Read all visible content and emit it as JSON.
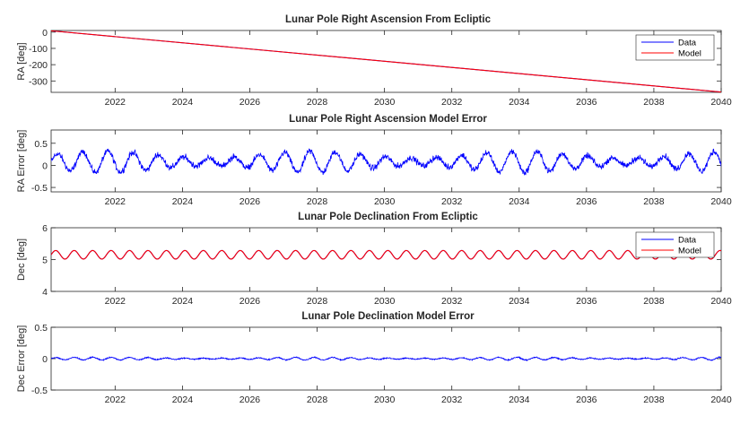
{
  "chart_data": [
    {
      "type": "line",
      "title": "Lunar Pole Right Ascension From Ecliptic",
      "xlabel": "",
      "ylabel": "RA [deg]",
      "xlim": [
        2020.1,
        2040
      ],
      "ylim": [
        -370,
        10
      ],
      "xticks": [
        2022,
        2024,
        2026,
        2028,
        2030,
        2032,
        2034,
        2036,
        2038,
        2040
      ],
      "xtick_labels": [
        "2022",
        "2024",
        "2026",
        "2028",
        "2030",
        "2032",
        "2034",
        "2036",
        "2038",
        "2040"
      ],
      "yticks": [
        0,
        -100,
        -200,
        -300
      ],
      "ytick_labels": [
        "0",
        "-100",
        "-200",
        "-300"
      ],
      "legend": {
        "position": "top-right",
        "entries": [
          "Data",
          "Model"
        ]
      },
      "series": [
        {
          "name": "Data",
          "color": "#0000ff",
          "kind": "linear",
          "x": [
            2020.1,
            2040
          ],
          "y": [
            8,
            -368
          ]
        },
        {
          "name": "Model",
          "color": "#ff0000",
          "kind": "linear",
          "x": [
            2020.1,
            2040
          ],
          "y": [
            8,
            -368
          ]
        }
      ]
    },
    {
      "type": "line",
      "title": "Lunar Pole Right Ascension Model Error",
      "xlabel": "",
      "ylabel": "RA Error [deg]",
      "xlim": [
        2020.1,
        2040
      ],
      "ylim": [
        -0.6,
        0.8
      ],
      "xticks": [
        2022,
        2024,
        2026,
        2028,
        2030,
        2032,
        2034,
        2036,
        2038,
        2040
      ],
      "xtick_labels": [
        "2022",
        "2024",
        "2026",
        "2028",
        "2030",
        "2032",
        "2034",
        "2036",
        "2038",
        "2040"
      ],
      "yticks": [
        0.5,
        0,
        -0.5
      ],
      "ytick_labels": [
        "0.5",
        "0",
        "-0.5"
      ],
      "series": [
        {
          "name": "Data",
          "color": "#0000ff",
          "kind": "noisy-oscillation",
          "mean": 0.08,
          "amplitude": 0.22,
          "period_years": 0.75,
          "noise": 0.09,
          "x": [
            2020.1,
            2040
          ]
        }
      ]
    },
    {
      "type": "line",
      "title": "Lunar Pole Declination From Ecliptic",
      "xlabel": "",
      "ylabel": "Dec [deg]",
      "xlim": [
        2020.1,
        2040
      ],
      "ylim": [
        4,
        6
      ],
      "xticks": [
        2022,
        2024,
        2026,
        2028,
        2030,
        2032,
        2034,
        2036,
        2038,
        2040
      ],
      "xtick_labels": [
        "2022",
        "2024",
        "2026",
        "2028",
        "2030",
        "2032",
        "2034",
        "2036",
        "2038",
        "2040"
      ],
      "yticks": [
        6,
        5,
        4
      ],
      "ytick_labels": [
        "6",
        "5",
        "4"
      ],
      "legend": {
        "position": "top-right",
        "entries": [
          "Data",
          "Model"
        ]
      },
      "series": [
        {
          "name": "Data",
          "color": "#0000ff",
          "kind": "oscillation",
          "mean": 5.15,
          "amplitude": 0.135,
          "period_years": 0.548,
          "x": [
            2020.1,
            2040
          ]
        },
        {
          "name": "Model",
          "color": "#ff0000",
          "kind": "oscillation",
          "mean": 5.15,
          "amplitude": 0.135,
          "period_years": 0.548,
          "x": [
            2020.1,
            2040
          ]
        }
      ]
    },
    {
      "type": "line",
      "title": "Lunar Pole Declination Model Error",
      "xlabel": "",
      "ylabel": "Dec Error [deg]",
      "xlim": [
        2020.1,
        2040
      ],
      "ylim": [
        -0.5,
        0.5
      ],
      "xticks": [
        2022,
        2024,
        2026,
        2028,
        2030,
        2032,
        2034,
        2036,
        2038,
        2040
      ],
      "xtick_labels": [
        "2022",
        "2024",
        "2026",
        "2028",
        "2030",
        "2032",
        "2034",
        "2036",
        "2038",
        "2040"
      ],
      "yticks": [
        0.5,
        0,
        -0.5
      ],
      "ytick_labels": [
        "0.5",
        "0",
        "-0.5"
      ],
      "series": [
        {
          "name": "Data",
          "color": "#0000ff",
          "kind": "noisy-oscillation",
          "mean": 0.0,
          "amplitude": 0.02,
          "period_years": 0.548,
          "noise": 0.012,
          "x": [
            2020.1,
            2040
          ]
        }
      ]
    }
  ]
}
